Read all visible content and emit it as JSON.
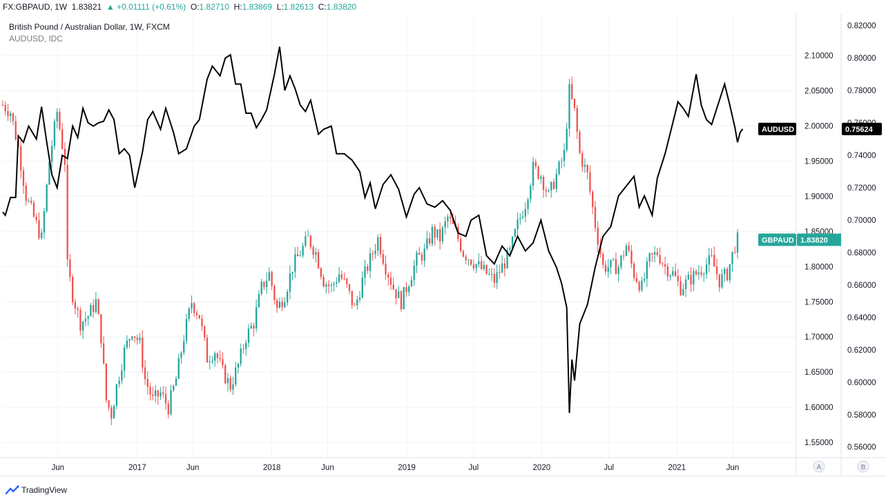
{
  "header": {
    "symbol": "FX:GBPAUD, 1W",
    "last": "1.83821",
    "change_arrow": "▲",
    "change": "+0.01111 (+0.61%)",
    "o_label": "O:",
    "o_val": "1.82710",
    "h_label": "H:",
    "h_val": "1.83869",
    "l_label": "L:",
    "l_val": "1.82613",
    "c_label": "C:",
    "c_val": "1.83820"
  },
  "legend": {
    "main": "British Pound / Australian Dollar, 1W, FXCM",
    "overlay": "AUDUSD, IDC"
  },
  "footer": {
    "brand": "TradingView"
  },
  "colors": {
    "up": "#26a69a",
    "down": "#ef5350",
    "line": "#000000",
    "grid": "#f0f3fa",
    "axis": "#e0e3eb",
    "badge_audusd": "#000000",
    "badge_gbpaud": "#26a69a"
  },
  "chart_data": {
    "type": "candlestick",
    "x_axis": {
      "tick_labels": [
        "Jun",
        "2017",
        "Jun",
        "2018",
        "Jun",
        "2019",
        "Jul",
        "2020",
        "Jul",
        "2021",
        "Jun"
      ],
      "start": "2016-01-04",
      "end": "2021-06-14"
    },
    "left_scale": {
      "series": "GBPAUD",
      "ticks": [
        "2.10000",
        "2.05000",
        "2.00000",
        "1.95000",
        "1.90000",
        "1.85000",
        "1.80000",
        "1.75000",
        "1.70000",
        "1.65000",
        "1.60000",
        "1.55000"
      ],
      "range": [
        1.5285,
        2.1595
      ],
      "badge_label": "GBPAUD",
      "badge_value": "1.83820",
      "last": 1.8382
    },
    "right_scale": {
      "series": "AUDUSD",
      "ticks": [
        "0.82000",
        "0.80000",
        "0.78000",
        "0.76000",
        "0.74000",
        "0.72000",
        "0.70000",
        "0.68000",
        "0.66000",
        "0.64000",
        "0.62000",
        "0.60000",
        "0.58000",
        "0.56000"
      ],
      "range": [
        0.5535,
        0.8273
      ],
      "badge_label": "AUDUSD",
      "badge_value": "0.75624",
      "last": 0.75624
    },
    "scale_buttons": [
      "A",
      "B"
    ],
    "gbpaud_path": [
      [
        "2016-01-04",
        2.03
      ],
      [
        "2016-01-25",
        2.02
      ],
      [
        "2016-02-15",
        1.97
      ],
      [
        "2016-03-07",
        1.9
      ],
      [
        "2016-03-28",
        1.87
      ],
      [
        "2016-04-18",
        1.84
      ],
      [
        "2016-05-09",
        1.95
      ],
      [
        "2016-05-30",
        2.02
      ],
      [
        "2016-06-20",
        1.95
      ],
      [
        "2016-06-27",
        1.8
      ],
      [
        "2016-07-11",
        1.76
      ],
      [
        "2016-08-01",
        1.72
      ],
      [
        "2016-08-22",
        1.73
      ],
      [
        "2016-09-12",
        1.75
      ],
      [
        "2016-09-26",
        1.7
      ],
      [
        "2016-10-10",
        1.61
      ],
      [
        "2016-10-24",
        1.59
      ],
      [
        "2016-11-07",
        1.63
      ],
      [
        "2016-11-28",
        1.68
      ],
      [
        "2016-12-19",
        1.71
      ],
      [
        "2017-01-09",
        1.69
      ],
      [
        "2017-01-23",
        1.64
      ],
      [
        "2017-02-13",
        1.61
      ],
      [
        "2017-03-06",
        1.62
      ],
      [
        "2017-03-27",
        1.6
      ],
      [
        "2017-04-17",
        1.64
      ],
      [
        "2017-05-08",
        1.7
      ],
      [
        "2017-05-29",
        1.75
      ],
      [
        "2017-06-19",
        1.73
      ],
      [
        "2017-07-10",
        1.67
      ],
      [
        "2017-07-31",
        1.68
      ],
      [
        "2017-08-21",
        1.65
      ],
      [
        "2017-09-11",
        1.63
      ],
      [
        "2017-10-02",
        1.66
      ],
      [
        "2017-10-23",
        1.7
      ],
      [
        "2017-11-13",
        1.72
      ],
      [
        "2017-12-04",
        1.77
      ],
      [
        "2017-12-25",
        1.79
      ],
      [
        "2018-01-15",
        1.74
      ],
      [
        "2018-02-05",
        1.76
      ],
      [
        "2018-02-26",
        1.8
      ],
      [
        "2018-03-19",
        1.82
      ],
      [
        "2018-04-09",
        1.84
      ],
      [
        "2018-04-30",
        1.82
      ],
      [
        "2018-05-21",
        1.78
      ],
      [
        "2018-06-11",
        1.77
      ],
      [
        "2018-07-02",
        1.79
      ],
      [
        "2018-07-23",
        1.77
      ],
      [
        "2018-08-13",
        1.74
      ],
      [
        "2018-09-03",
        1.78
      ],
      [
        "2018-09-24",
        1.81
      ],
      [
        "2018-10-15",
        1.84
      ],
      [
        "2018-11-05",
        1.8
      ],
      [
        "2018-11-26",
        1.77
      ],
      [
        "2018-12-17",
        1.75
      ],
      [
        "2019-01-07",
        1.78
      ],
      [
        "2019-01-28",
        1.81
      ],
      [
        "2019-02-18",
        1.82
      ],
      [
        "2019-03-11",
        1.85
      ],
      [
        "2019-04-01",
        1.84
      ],
      [
        "2019-04-22",
        1.87
      ],
      [
        "2019-05-13",
        1.85
      ],
      [
        "2019-06-03",
        1.82
      ],
      [
        "2019-06-24",
        1.81
      ],
      [
        "2019-07-15",
        1.8
      ],
      [
        "2019-08-05",
        1.79
      ],
      [
        "2019-08-26",
        1.78
      ],
      [
        "2019-09-16",
        1.8
      ],
      [
        "2019-10-07",
        1.82
      ],
      [
        "2019-10-28",
        1.86
      ],
      [
        "2019-11-18",
        1.89
      ],
      [
        "2019-12-09",
        1.94
      ],
      [
        "2019-12-30",
        1.93
      ],
      [
        "2020-01-20",
        1.9
      ],
      [
        "2020-02-10",
        1.93
      ],
      [
        "2020-03-02",
        1.96
      ],
      [
        "2020-03-16",
        2.05
      ],
      [
        "2020-03-30",
        2.02
      ],
      [
        "2020-04-13",
        1.96
      ],
      [
        "2020-05-04",
        1.93
      ],
      [
        "2020-05-25",
        1.86
      ],
      [
        "2020-06-15",
        1.8
      ],
      [
        "2020-07-06",
        1.8
      ],
      [
        "2020-07-27",
        1.8
      ],
      [
        "2020-08-17",
        1.83
      ],
      [
        "2020-09-07",
        1.79
      ],
      [
        "2020-09-28",
        1.77
      ],
      [
        "2020-10-19",
        1.81
      ],
      [
        "2020-11-09",
        1.82
      ],
      [
        "2020-11-30",
        1.8
      ],
      [
        "2020-12-21",
        1.79
      ],
      [
        "2021-01-11",
        1.77
      ],
      [
        "2021-02-01",
        1.78
      ],
      [
        "2021-02-22",
        1.79
      ],
      [
        "2021-03-15",
        1.8
      ],
      [
        "2021-04-05",
        1.81
      ],
      [
        "2021-04-26",
        1.78
      ],
      [
        "2021-05-17",
        1.79
      ],
      [
        "2021-06-07",
        1.83
      ],
      [
        "2021-06-14",
        1.8382
      ]
    ],
    "audusd_line": [
      [
        "2016-01-04",
        0.705
      ],
      [
        "2016-01-11",
        0.703
      ],
      [
        "2016-01-25",
        0.714
      ],
      [
        "2016-02-08",
        0.714
      ],
      [
        "2016-02-15",
        0.752
      ],
      [
        "2016-02-29",
        0.748
      ],
      [
        "2016-03-14",
        0.758
      ],
      [
        "2016-04-04",
        0.75
      ],
      [
        "2016-04-18",
        0.77
      ],
      [
        "2016-05-02",
        0.748
      ],
      [
        "2016-05-16",
        0.728
      ],
      [
        "2016-05-30",
        0.72
      ],
      [
        "2016-06-13",
        0.74
      ],
      [
        "2016-06-27",
        0.738
      ],
      [
        "2016-07-11",
        0.758
      ],
      [
        "2016-07-25",
        0.751
      ],
      [
        "2016-08-08",
        0.769
      ],
      [
        "2016-08-22",
        0.76
      ],
      [
        "2016-09-05",
        0.758
      ],
      [
        "2016-09-19",
        0.76
      ],
      [
        "2016-10-03",
        0.761
      ],
      [
        "2016-10-17",
        0.768
      ],
      [
        "2016-10-31",
        0.762
      ],
      [
        "2016-11-14",
        0.741
      ],
      [
        "2016-11-28",
        0.744
      ],
      [
        "2016-12-12",
        0.74
      ],
      [
        "2016-12-26",
        0.72
      ],
      [
        "2017-01-16",
        0.742
      ],
      [
        "2017-01-30",
        0.762
      ],
      [
        "2017-02-13",
        0.767
      ],
      [
        "2017-03-06",
        0.756
      ],
      [
        "2017-03-20",
        0.769
      ],
      [
        "2017-04-10",
        0.754
      ],
      [
        "2017-04-24",
        0.741
      ],
      [
        "2017-05-15",
        0.744
      ],
      [
        "2017-06-05",
        0.758
      ],
      [
        "2017-06-19",
        0.762
      ],
      [
        "2017-07-10",
        0.787
      ],
      [
        "2017-07-24",
        0.795
      ],
      [
        "2017-08-14",
        0.789
      ],
      [
        "2017-08-28",
        0.8
      ],
      [
        "2017-09-11",
        0.802
      ],
      [
        "2017-09-25",
        0.784
      ],
      [
        "2017-10-09",
        0.784
      ],
      [
        "2017-10-23",
        0.766
      ],
      [
        "2017-11-06",
        0.766
      ],
      [
        "2017-11-20",
        0.757
      ],
      [
        "2017-12-04",
        0.762
      ],
      [
        "2017-12-18",
        0.768
      ],
      [
        "2018-01-08",
        0.79
      ],
      [
        "2018-01-22",
        0.807
      ],
      [
        "2018-02-05",
        0.78
      ],
      [
        "2018-02-19",
        0.789
      ],
      [
        "2018-03-05",
        0.781
      ],
      [
        "2018-03-19",
        0.771
      ],
      [
        "2018-04-02",
        0.767
      ],
      [
        "2018-04-16",
        0.774
      ],
      [
        "2018-05-07",
        0.753
      ],
      [
        "2018-05-21",
        0.756
      ],
      [
        "2018-06-11",
        0.758
      ],
      [
        "2018-06-25",
        0.741
      ],
      [
        "2018-07-16",
        0.741
      ],
      [
        "2018-08-06",
        0.737
      ],
      [
        "2018-08-27",
        0.73
      ],
      [
        "2018-09-10",
        0.714
      ],
      [
        "2018-09-24",
        0.723
      ],
      [
        "2018-10-08",
        0.707
      ],
      [
        "2018-10-29",
        0.722
      ],
      [
        "2018-11-19",
        0.728
      ],
      [
        "2018-12-10",
        0.719
      ],
      [
        "2018-12-31",
        0.702
      ],
      [
        "2019-01-21",
        0.716
      ],
      [
        "2019-02-04",
        0.72
      ],
      [
        "2019-02-25",
        0.71
      ],
      [
        "2019-03-18",
        0.708
      ],
      [
        "2019-04-08",
        0.712
      ],
      [
        "2019-04-29",
        0.706
      ],
      [
        "2019-05-20",
        0.692
      ],
      [
        "2019-06-10",
        0.69
      ],
      [
        "2019-06-24",
        0.7
      ],
      [
        "2019-07-15",
        0.703
      ],
      [
        "2019-08-05",
        0.678
      ],
      [
        "2019-08-26",
        0.673
      ],
      [
        "2019-09-16",
        0.684
      ],
      [
        "2019-10-07",
        0.678
      ],
      [
        "2019-10-28",
        0.69
      ],
      [
        "2019-11-18",
        0.681
      ],
      [
        "2019-12-09",
        0.686
      ],
      [
        "2019-12-30",
        0.7
      ],
      [
        "2020-01-20",
        0.681
      ],
      [
        "2020-02-10",
        0.671
      ],
      [
        "2020-02-24",
        0.661
      ],
      [
        "2020-03-09",
        0.646
      ],
      [
        "2020-03-16",
        0.581
      ],
      [
        "2020-03-23",
        0.614
      ],
      [
        "2020-03-30",
        0.601
      ],
      [
        "2020-04-13",
        0.636
      ],
      [
        "2020-05-04",
        0.648
      ],
      [
        "2020-05-25",
        0.671
      ],
      [
        "2020-06-15",
        0.69
      ],
      [
        "2020-07-06",
        0.696
      ],
      [
        "2020-07-27",
        0.715
      ],
      [
        "2020-08-17",
        0.721
      ],
      [
        "2020-09-07",
        0.727
      ],
      [
        "2020-09-21",
        0.708
      ],
      [
        "2020-10-05",
        0.715
      ],
      [
        "2020-10-26",
        0.703
      ],
      [
        "2020-11-09",
        0.726
      ],
      [
        "2020-11-30",
        0.741
      ],
      [
        "2020-12-21",
        0.76
      ],
      [
        "2021-01-04",
        0.773
      ],
      [
        "2021-01-18",
        0.769
      ],
      [
        "2021-02-01",
        0.764
      ],
      [
        "2021-02-22",
        0.79
      ],
      [
        "2021-03-08",
        0.771
      ],
      [
        "2021-03-22",
        0.762
      ],
      [
        "2021-04-05",
        0.759
      ],
      [
        "2021-04-26",
        0.774
      ],
      [
        "2021-05-10",
        0.784
      ],
      [
        "2021-05-24",
        0.771
      ],
      [
        "2021-06-07",
        0.757
      ],
      [
        "2021-06-14",
        0.748
      ],
      [
        "2021-06-21",
        0.754
      ],
      [
        "2021-06-28",
        0.75624
      ]
    ]
  }
}
